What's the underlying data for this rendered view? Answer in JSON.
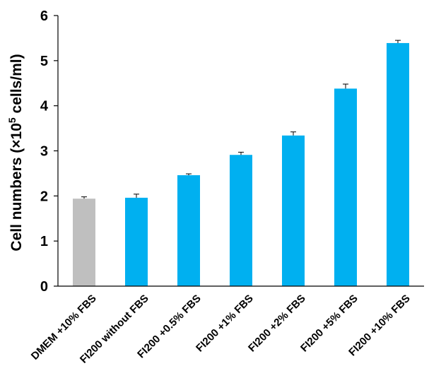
{
  "chart_data": {
    "type": "bar",
    "categories": [
      "DMEM +10% FBS",
      "FI200 without FBS",
      "FI200 +0.5% FBS",
      "FI200 +1% FBS",
      "FI200 +2% FBS",
      "FI200 +5% FBS",
      "FI200 +10% FBS"
    ],
    "values": [
      1.94,
      1.96,
      2.46,
      2.91,
      3.34,
      4.38,
      5.39
    ],
    "errors": [
      0.04,
      0.08,
      0.03,
      0.06,
      0.08,
      0.1,
      0.06
    ],
    "colors": [
      "#bfbfbf",
      "#00b0f0",
      "#00b0f0",
      "#00b0f0",
      "#00b0f0",
      "#00b0f0",
      "#00b0f0"
    ],
    "ylabel_main": "Cell numbers (×10",
    "ylabel_sup": "5",
    "ylabel_tail": " cells/ml)",
    "ylim": [
      0,
      6
    ],
    "yticks": [
      "0",
      "1",
      "2",
      "3",
      "4",
      "5",
      "6"
    ],
    "grid": false,
    "legend": "none"
  }
}
